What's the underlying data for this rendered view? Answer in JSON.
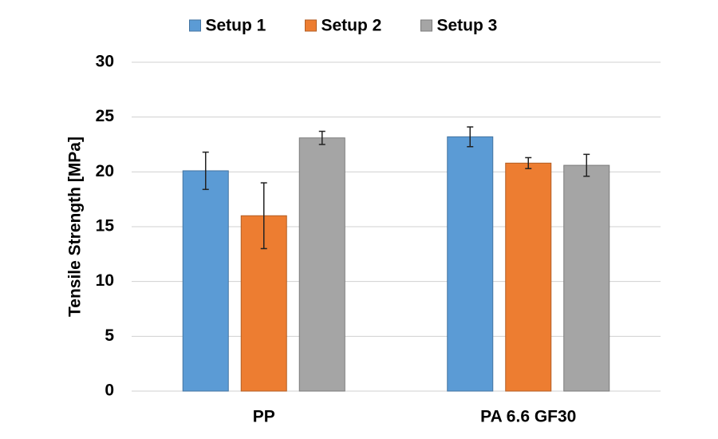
{
  "chart_data": {
    "type": "bar",
    "y_label": "Tensile Strength [MPa]",
    "categories": [
      "PP",
      "PA 6.6 GF30"
    ],
    "series": [
      {
        "name": "Setup 1",
        "color": "#5b9bd5",
        "values": [
          20.1,
          23.2
        ],
        "errors": [
          1.7,
          0.9
        ]
      },
      {
        "name": "Setup 2",
        "color": "#ed7d31",
        "values": [
          16.0,
          20.8
        ],
        "errors": [
          3.0,
          0.5
        ]
      },
      {
        "name": "Setup 3",
        "color": "#a5a5a5",
        "values": [
          23.1,
          20.6
        ],
        "errors": [
          0.6,
          1.0
        ]
      }
    ],
    "ylim": [
      0,
      30
    ],
    "yticks": [
      0,
      5,
      10,
      15,
      20,
      25,
      30
    ],
    "grid": true,
    "legend": "top"
  }
}
